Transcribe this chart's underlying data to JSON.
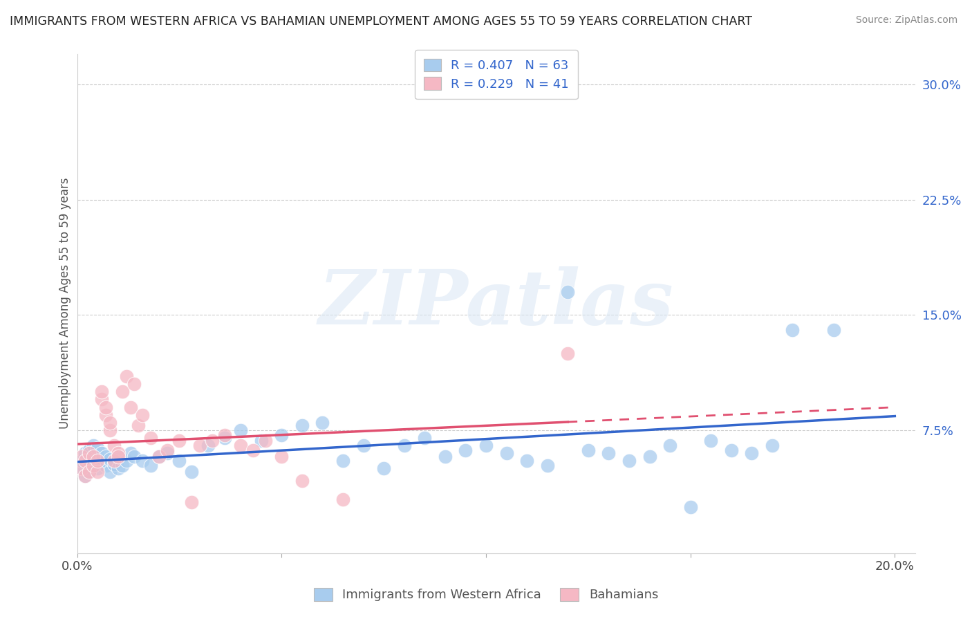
{
  "title": "IMMIGRANTS FROM WESTERN AFRICA VS BAHAMIAN UNEMPLOYMENT AMONG AGES 55 TO 59 YEARS CORRELATION CHART",
  "source": "Source: ZipAtlas.com",
  "ylabel": "Unemployment Among Ages 55 to 59 years",
  "xlim": [
    0.0,
    0.205
  ],
  "ylim": [
    -0.005,
    0.32
  ],
  "yticks": [
    0.0,
    0.075,
    0.15,
    0.225,
    0.3
  ],
  "ytick_labels": [
    "",
    "7.5%",
    "15.0%",
    "22.5%",
    "30.0%"
  ],
  "xtick_labels": [
    "0.0%",
    "",
    "",
    "",
    "20.0%"
  ],
  "series1_label": "Immigrants from Western Africa",
  "series2_label": "Bahamians",
  "series1_color": "#a8ccee",
  "series2_color": "#f5b8c4",
  "series1_line_color": "#3366cc",
  "series2_line_color": "#e05070",
  "R1": 0.407,
  "N1": 63,
  "R2": 0.229,
  "N2": 41,
  "watermark": "ZIPatlas",
  "series1_x": [
    0.001,
    0.001,
    0.002,
    0.002,
    0.003,
    0.003,
    0.003,
    0.004,
    0.004,
    0.004,
    0.005,
    0.005,
    0.005,
    0.006,
    0.006,
    0.007,
    0.007,
    0.008,
    0.008,
    0.009,
    0.01,
    0.01,
    0.011,
    0.012,
    0.013,
    0.014,
    0.016,
    0.018,
    0.02,
    0.022,
    0.025,
    0.028,
    0.032,
    0.036,
    0.04,
    0.045,
    0.05,
    0.055,
    0.06,
    0.065,
    0.07,
    0.075,
    0.08,
    0.085,
    0.09,
    0.095,
    0.1,
    0.105,
    0.11,
    0.115,
    0.12,
    0.125,
    0.13,
    0.135,
    0.14,
    0.145,
    0.15,
    0.155,
    0.16,
    0.165,
    0.17,
    0.175,
    0.185
  ],
  "series1_y": [
    0.05,
    0.055,
    0.045,
    0.06,
    0.048,
    0.055,
    0.062,
    0.052,
    0.058,
    0.065,
    0.05,
    0.057,
    0.063,
    0.055,
    0.06,
    0.052,
    0.058,
    0.048,
    0.056,
    0.053,
    0.05,
    0.058,
    0.052,
    0.055,
    0.06,
    0.058,
    0.055,
    0.052,
    0.058,
    0.06,
    0.055,
    0.048,
    0.065,
    0.07,
    0.075,
    0.068,
    0.072,
    0.078,
    0.08,
    0.055,
    0.065,
    0.05,
    0.065,
    0.07,
    0.058,
    0.062,
    0.065,
    0.06,
    0.055,
    0.052,
    0.165,
    0.062,
    0.06,
    0.055,
    0.058,
    0.065,
    0.025,
    0.068,
    0.062,
    0.06,
    0.065,
    0.14,
    0.14
  ],
  "series2_x": [
    0.001,
    0.001,
    0.002,
    0.002,
    0.003,
    0.003,
    0.004,
    0.004,
    0.005,
    0.005,
    0.006,
    0.006,
    0.007,
    0.007,
    0.008,
    0.008,
    0.009,
    0.009,
    0.01,
    0.01,
    0.011,
    0.012,
    0.013,
    0.014,
    0.015,
    0.016,
    0.018,
    0.02,
    0.022,
    0.025,
    0.028,
    0.03,
    0.033,
    0.036,
    0.04,
    0.043,
    0.046,
    0.05,
    0.055,
    0.065,
    0.12
  ],
  "series2_y": [
    0.05,
    0.058,
    0.045,
    0.055,
    0.048,
    0.06,
    0.052,
    0.058,
    0.048,
    0.055,
    0.095,
    0.1,
    0.085,
    0.09,
    0.075,
    0.08,
    0.065,
    0.055,
    0.06,
    0.058,
    0.1,
    0.11,
    0.09,
    0.105,
    0.078,
    0.085,
    0.07,
    0.058,
    0.062,
    0.068,
    0.028,
    0.065,
    0.068,
    0.072,
    0.065,
    0.062,
    0.068,
    0.058,
    0.042,
    0.03,
    0.125
  ]
}
